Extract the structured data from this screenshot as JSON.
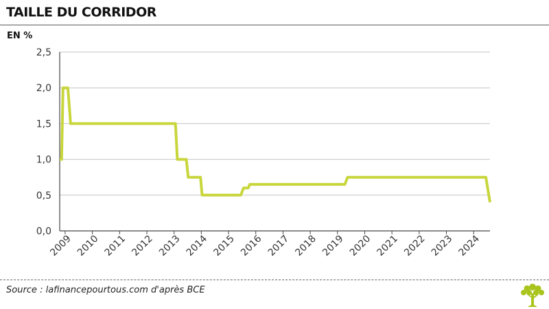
{
  "chart_data": {
    "type": "line",
    "title": "TAILLE DU CORRIDOR",
    "ylabel": "EN %",
    "xlabel": "",
    "ylim": [
      0,
      2.5
    ],
    "yticks": [
      {
        "value": 0,
        "label": "0,0"
      },
      {
        "value": 0.5,
        "label": "0,5"
      },
      {
        "value": 1.0,
        "label": "1,0"
      },
      {
        "value": 1.5,
        "label": "1,5"
      },
      {
        "value": 2.0,
        "label": "2,0"
      },
      {
        "value": 2.5,
        "label": "2,5"
      }
    ],
    "xlim": [
      2008.8,
      2024.6
    ],
    "xticks": [
      "2009",
      "2010",
      "2011",
      "2012",
      "2013",
      "2014",
      "2015",
      "2016",
      "2017",
      "2018",
      "2019",
      "2020",
      "2021",
      "2022",
      "2023",
      "2024"
    ],
    "grid": true,
    "series": [
      {
        "color": "#c8d63c",
        "x": [
          2008.8,
          2008.87,
          2008.92,
          2009.1,
          2009.2,
          2009.25,
          2013.05,
          2013.12,
          2013.45,
          2013.52,
          2013.97,
          2014.03,
          2015.45,
          2015.55,
          2015.72,
          2015.78,
          2019.27,
          2019.37,
          2024.45,
          2024.6
        ],
        "y": [
          1.0,
          1.0,
          2.0,
          2.0,
          1.5,
          1.5,
          1.5,
          1.0,
          1.0,
          0.75,
          0.75,
          0.5,
          0.5,
          0.6,
          0.6,
          0.65,
          0.65,
          0.75,
          0.75,
          0.4
        ]
      }
    ]
  },
  "footer": {
    "source": "Source : lafinancepourtous.com d'après BCE"
  },
  "colors": {
    "line": "#c8d63c",
    "logo": "#a9c41d"
  }
}
